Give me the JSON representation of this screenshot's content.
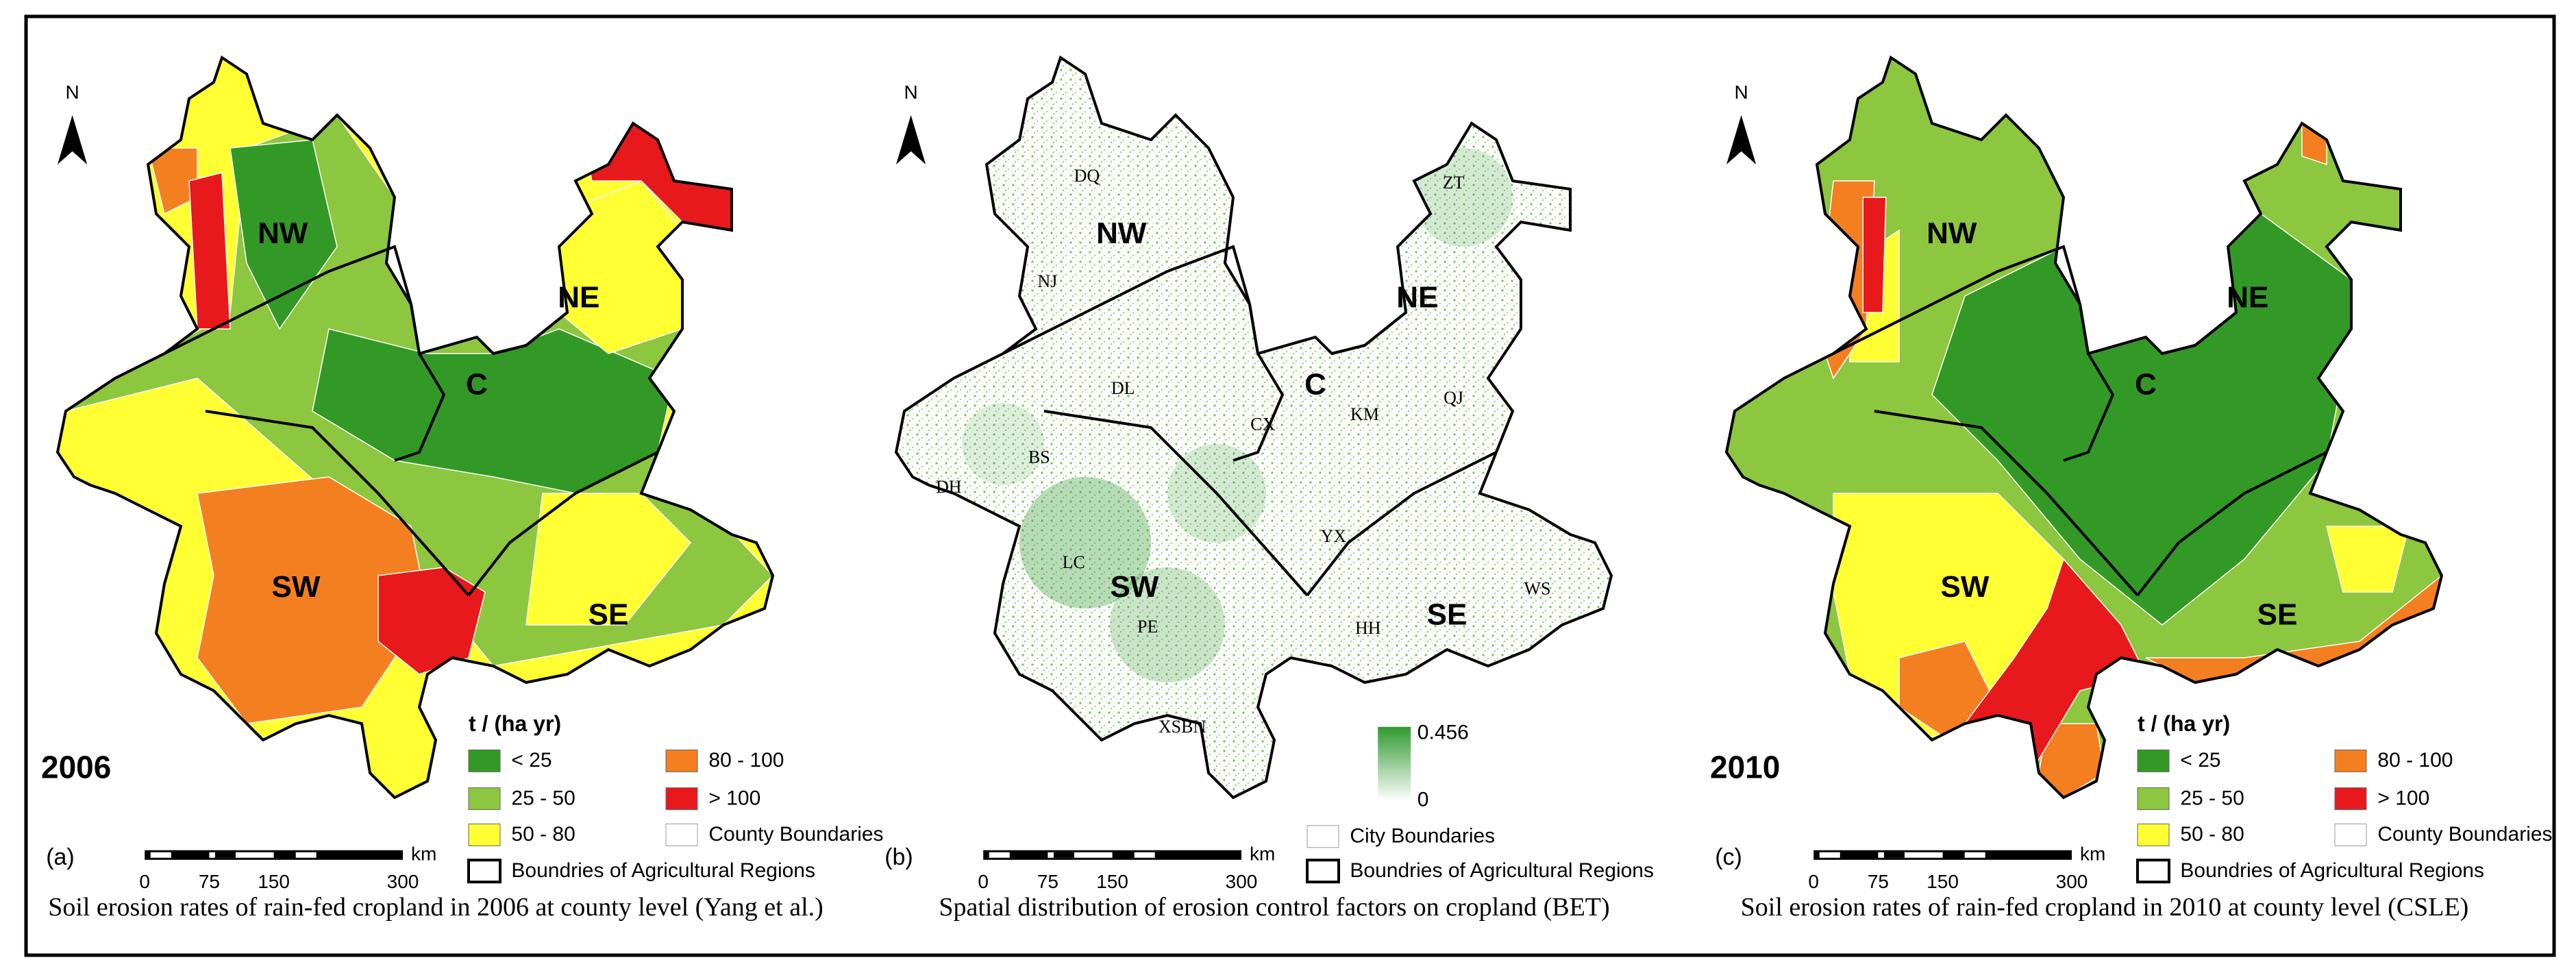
{
  "panels": [
    {
      "label": "(a)",
      "year": "2006",
      "north": "N",
      "regions": [
        "NW",
        "NE",
        "C",
        "SW",
        "SE"
      ],
      "legend": {
        "title": "t / (ha yr)",
        "classes": [
          {
            "label": "< 25",
            "color": "#339926"
          },
          {
            "label": "25 - 50",
            "color": "#8dc63f"
          },
          {
            "label": "50 - 80",
            "color": "#ffff33"
          },
          {
            "label": "80 - 100",
            "color": "#f47f20"
          },
          {
            "label": "> 100",
            "color": "#e8191c"
          }
        ],
        "boundaries": [
          "County Boundaries",
          "Boundries of Agricultural Regions"
        ]
      },
      "scale": {
        "ticks": [
          0,
          75,
          150,
          300
        ],
        "unit": "km"
      },
      "caption": "Soil erosion rates of rain-fed cropland in 2006 at county level (Yang et al.)"
    },
    {
      "label": "(b)",
      "north": "N",
      "regions": [
        "NW",
        "NE",
        "C",
        "SW",
        "SE"
      ],
      "cities": [
        "DQ",
        "NJ",
        "DL",
        "BS",
        "DH",
        "CX",
        "KM",
        "QJ",
        "ZT",
        "YX",
        "LC",
        "PE",
        "HH",
        "WS",
        "XSBN"
      ],
      "legend": {
        "max": 0.456,
        "min": 0,
        "boundaries": [
          "City Boundaries",
          "Boundries of Agricultural Regions"
        ]
      },
      "scale": {
        "ticks": [
          0,
          75,
          150,
          300
        ],
        "unit": "km"
      },
      "caption": "Spatial distribution of erosion control factors on cropland (BET)"
    },
    {
      "label": "(c)",
      "year": "2010",
      "north": "N",
      "regions": [
        "NW",
        "NE",
        "C",
        "SW",
        "SE"
      ],
      "legend": {
        "title": "t / (ha yr)",
        "classes": [
          {
            "label": "< 25",
            "color": "#339926"
          },
          {
            "label": "25 - 50",
            "color": "#8dc63f"
          },
          {
            "label": "50 - 80",
            "color": "#ffff33"
          },
          {
            "label": "80 - 100",
            "color": "#f47f20"
          },
          {
            "label": "> 100",
            "color": "#e8191c"
          }
        ],
        "boundaries": [
          "County Boundaries",
          "Boundries of Agricultural Regions"
        ]
      },
      "scale": {
        "ticks": [
          0,
          75,
          150,
          300
        ],
        "unit": "km"
      },
      "caption": "Soil erosion rates of rain-fed cropland in 2010 at county level (CSLE)"
    }
  ]
}
